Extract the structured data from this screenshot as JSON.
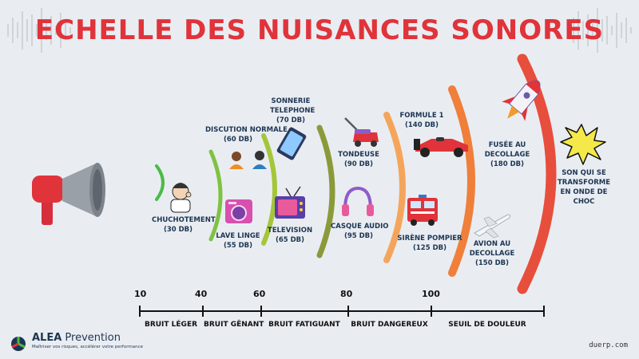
{
  "title": "ECHELLE DES NUISANCES SONORES",
  "sources": [
    {
      "label": "CHUCHOTEMENT",
      "db": "(30 DB)",
      "icon": "whisper-icon"
    },
    {
      "label": "DISCUTION NORMALE",
      "db": "(60 DB)",
      "icon": "conversation-icon"
    },
    {
      "label": "LAVE LINGE",
      "db": "(55 DB)",
      "icon": "washing-machine-icon"
    },
    {
      "label": "SONNERIE TELEPHONE",
      "db": "(70 DB)",
      "icon": "phone-icon"
    },
    {
      "label": "TELEVISION",
      "db": "(65 DB)",
      "icon": "television-icon"
    },
    {
      "label": "TONDEUSE",
      "db": "(90 DB)",
      "icon": "lawn-mower-icon"
    },
    {
      "label": "CASQUE AUDIO",
      "db": "(95 DB)",
      "icon": "headphones-icon"
    },
    {
      "label": "FORMULE 1",
      "db": "(140 DB)",
      "icon": "race-car-icon"
    },
    {
      "label": "SIRÈNE POMPIER",
      "db": "(125 DB)",
      "icon": "fire-truck-icon"
    },
    {
      "label": "FUSÉE AU DECOLLAGE",
      "db": "(180 DB)",
      "icon": "rocket-icon"
    },
    {
      "label": "AVION AU DECOLLAGE",
      "db": "(150 DB)",
      "icon": "airplane-icon"
    },
    {
      "label": "SON QUI SE TRANSFORME EN ONDE DE CHOC",
      "db": "",
      "icon": "shockwave-icon"
    }
  ],
  "scale": {
    "ticks": [
      "10",
      "40",
      "60",
      "80",
      "100"
    ],
    "categories": [
      "BRUIT LÉGER",
      "BRUIT GÊNANT",
      "BRUIT FATIGUANT",
      "BRUIT DANGEREUX",
      "SEUIL DE DOULEUR"
    ]
  },
  "wave_colors": [
    "#4cbb47",
    "#7fc242",
    "#a4c639",
    "#8a9a3a",
    "#f5a55b",
    "#f07f3a",
    "#e84e3c"
  ],
  "accent_color": "#e0333a",
  "brand": {
    "name_bold": "ALEA",
    "name_rest": " Prevention",
    "tagline": "Maîtriser vos risques, accélérer votre performance"
  },
  "site": "duerp.com"
}
